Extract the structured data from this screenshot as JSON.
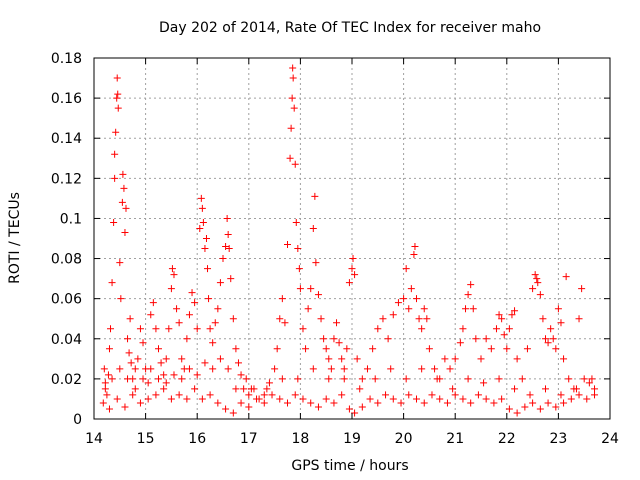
{
  "chart_data": {
    "type": "scatter",
    "title": "Day 202 of 2014, Rate Of TEC Index for receiver maho",
    "xlabel": "GPS time / hours",
    "ylabel": "ROTI / TECUs",
    "xlim": [
      14,
      24
    ],
    "ylim": [
      0,
      0.18
    ],
    "xticks": [
      14,
      15,
      16,
      17,
      18,
      19,
      20,
      21,
      22,
      23,
      24
    ],
    "yticks": [
      0,
      0.02,
      0.04,
      0.06,
      0.08,
      0.1,
      0.12,
      0.14,
      0.16,
      0.18
    ],
    "ytick_labels": [
      "0",
      "0.02",
      "0.04",
      "0.06",
      "0.08",
      "0.1",
      "0.12",
      "0.14",
      "0.16",
      "0.18"
    ],
    "grid": true,
    "marker": "+",
    "color": "#ff0000",
    "points": [
      [
        14.2,
        0.025
      ],
      [
        14.22,
        0.018
      ],
      [
        14.25,
        0.012
      ],
      [
        14.28,
        0.022
      ],
      [
        14.3,
        0.035
      ],
      [
        14.32,
        0.045
      ],
      [
        14.35,
        0.068
      ],
      [
        14.38,
        0.098
      ],
      [
        14.4,
        0.12
      ],
      [
        14.4,
        0.132
      ],
      [
        14.42,
        0.143
      ],
      [
        14.44,
        0.16
      ],
      [
        14.45,
        0.17
      ],
      [
        14.46,
        0.162
      ],
      [
        14.47,
        0.155
      ],
      [
        14.5,
        0.078
      ],
      [
        14.52,
        0.06
      ],
      [
        14.55,
        0.108
      ],
      [
        14.56,
        0.122
      ],
      [
        14.58,
        0.115
      ],
      [
        14.6,
        0.093
      ],
      [
        14.62,
        0.105
      ],
      [
        14.65,
        0.04
      ],
      [
        14.68,
        0.033
      ],
      [
        14.7,
        0.05
      ],
      [
        14.72,
        0.028
      ],
      [
        14.75,
        0.02
      ],
      [
        14.8,
        0.015
      ],
      [
        14.85,
        0.03
      ],
      [
        14.9,
        0.045
      ],
      [
        14.95,
        0.038
      ],
      [
        15.0,
        0.025
      ],
      [
        15.05,
        0.018
      ],
      [
        15.1,
        0.052
      ],
      [
        15.15,
        0.058
      ],
      [
        15.2,
        0.045
      ],
      [
        15.25,
        0.035
      ],
      [
        15.3,
        0.028
      ],
      [
        15.35,
        0.022
      ],
      [
        15.4,
        0.03
      ],
      [
        15.45,
        0.045
      ],
      [
        15.5,
        0.065
      ],
      [
        15.52,
        0.075
      ],
      [
        15.55,
        0.072
      ],
      [
        15.6,
        0.055
      ],
      [
        15.65,
        0.048
      ],
      [
        15.7,
        0.03
      ],
      [
        15.75,
        0.025
      ],
      [
        15.8,
        0.04
      ],
      [
        15.85,
        0.052
      ],
      [
        15.9,
        0.063
      ],
      [
        15.95,
        0.058
      ],
      [
        16.0,
        0.045
      ],
      [
        16.05,
        0.095
      ],
      [
        16.08,
        0.11
      ],
      [
        16.1,
        0.105
      ],
      [
        16.12,
        0.098
      ],
      [
        16.15,
        0.085
      ],
      [
        16.18,
        0.09
      ],
      [
        16.2,
        0.075
      ],
      [
        16.22,
        0.06
      ],
      [
        16.25,
        0.045
      ],
      [
        16.3,
        0.038
      ],
      [
        16.35,
        0.048
      ],
      [
        16.4,
        0.055
      ],
      [
        16.45,
        0.068
      ],
      [
        16.5,
        0.08
      ],
      [
        16.55,
        0.086
      ],
      [
        16.58,
        0.1
      ],
      [
        16.6,
        0.092
      ],
      [
        16.62,
        0.085
      ],
      [
        16.65,
        0.07
      ],
      [
        16.7,
        0.05
      ],
      [
        16.75,
        0.035
      ],
      [
        16.8,
        0.028
      ],
      [
        16.85,
        0.022
      ],
      [
        16.9,
        0.015
      ],
      [
        16.95,
        0.02
      ],
      [
        17.0,
        0.012
      ],
      [
        17.1,
        0.015
      ],
      [
        17.2,
        0.01
      ],
      [
        17.3,
        0.012
      ],
      [
        17.4,
        0.018
      ],
      [
        17.5,
        0.025
      ],
      [
        17.55,
        0.035
      ],
      [
        17.6,
        0.05
      ],
      [
        17.65,
        0.06
      ],
      [
        17.7,
        0.048
      ],
      [
        17.75,
        0.087
      ],
      [
        17.8,
        0.13
      ],
      [
        17.82,
        0.145
      ],
      [
        17.84,
        0.16
      ],
      [
        17.85,
        0.175
      ],
      [
        17.86,
        0.17
      ],
      [
        17.88,
        0.155
      ],
      [
        17.9,
        0.127
      ],
      [
        17.92,
        0.098
      ],
      [
        17.95,
        0.085
      ],
      [
        17.98,
        0.075
      ],
      [
        18.0,
        0.065
      ],
      [
        18.05,
        0.045
      ],
      [
        18.1,
        0.035
      ],
      [
        18.15,
        0.055
      ],
      [
        18.2,
        0.065
      ],
      [
        18.25,
        0.095
      ],
      [
        18.28,
        0.111
      ],
      [
        18.3,
        0.078
      ],
      [
        18.35,
        0.062
      ],
      [
        18.4,
        0.05
      ],
      [
        18.45,
        0.04
      ],
      [
        18.5,
        0.035
      ],
      [
        18.55,
        0.03
      ],
      [
        18.6,
        0.025
      ],
      [
        18.65,
        0.04
      ],
      [
        18.7,
        0.048
      ],
      [
        18.75,
        0.038
      ],
      [
        18.8,
        0.03
      ],
      [
        18.85,
        0.025
      ],
      [
        18.9,
        0.035
      ],
      [
        18.95,
        0.068
      ],
      [
        19.0,
        0.075
      ],
      [
        19.02,
        0.08
      ],
      [
        19.05,
        0.072
      ],
      [
        19.1,
        0.03
      ],
      [
        19.2,
        0.02
      ],
      [
        19.3,
        0.025
      ],
      [
        19.4,
        0.035
      ],
      [
        19.5,
        0.045
      ],
      [
        19.6,
        0.05
      ],
      [
        19.7,
        0.04
      ],
      [
        19.8,
        0.052
      ],
      [
        19.9,
        0.058
      ],
      [
        20.0,
        0.06
      ],
      [
        20.05,
        0.075
      ],
      [
        20.1,
        0.055
      ],
      [
        20.15,
        0.065
      ],
      [
        20.2,
        0.082
      ],
      [
        20.22,
        0.086
      ],
      [
        20.25,
        0.06
      ],
      [
        20.3,
        0.05
      ],
      [
        20.35,
        0.045
      ],
      [
        20.4,
        0.055
      ],
      [
        20.45,
        0.05
      ],
      [
        20.5,
        0.035
      ],
      [
        20.6,
        0.025
      ],
      [
        20.7,
        0.02
      ],
      [
        20.8,
        0.03
      ],
      [
        20.9,
        0.025
      ],
      [
        21.0,
        0.03
      ],
      [
        21.1,
        0.038
      ],
      [
        21.15,
        0.045
      ],
      [
        21.2,
        0.055
      ],
      [
        21.25,
        0.062
      ],
      [
        21.3,
        0.067
      ],
      [
        21.35,
        0.055
      ],
      [
        21.4,
        0.04
      ],
      [
        21.5,
        0.03
      ],
      [
        21.6,
        0.04
      ],
      [
        21.7,
        0.035
      ],
      [
        21.8,
        0.045
      ],
      [
        21.85,
        0.052
      ],
      [
        21.9,
        0.05
      ],
      [
        21.95,
        0.042
      ],
      [
        22.0,
        0.035
      ],
      [
        22.05,
        0.045
      ],
      [
        22.1,
        0.052
      ],
      [
        22.15,
        0.054
      ],
      [
        22.2,
        0.03
      ],
      [
        22.3,
        0.02
      ],
      [
        22.4,
        0.035
      ],
      [
        22.5,
        0.065
      ],
      [
        22.55,
        0.072
      ],
      [
        22.58,
        0.07
      ],
      [
        22.6,
        0.068
      ],
      [
        22.65,
        0.062
      ],
      [
        22.7,
        0.05
      ],
      [
        22.75,
        0.04
      ],
      [
        22.8,
        0.038
      ],
      [
        22.85,
        0.045
      ],
      [
        22.9,
        0.04
      ],
      [
        22.95,
        0.035
      ],
      [
        23.0,
        0.055
      ],
      [
        23.05,
        0.048
      ],
      [
        23.1,
        0.03
      ],
      [
        23.15,
        0.071
      ],
      [
        23.2,
        0.02
      ],
      [
        23.3,
        0.015
      ],
      [
        23.4,
        0.05
      ],
      [
        23.45,
        0.065
      ],
      [
        23.5,
        0.02
      ],
      [
        23.6,
        0.018
      ],
      [
        23.7,
        0.015
      ],
      [
        14.18,
        0.008
      ],
      [
        14.3,
        0.005
      ],
      [
        14.45,
        0.01
      ],
      [
        14.6,
        0.006
      ],
      [
        14.75,
        0.012
      ],
      [
        14.9,
        0.008
      ],
      [
        15.05,
        0.01
      ],
      [
        15.2,
        0.012
      ],
      [
        15.35,
        0.015
      ],
      [
        15.5,
        0.01
      ],
      [
        15.65,
        0.012
      ],
      [
        15.8,
        0.01
      ],
      [
        15.95,
        0.015
      ],
      [
        16.1,
        0.01
      ],
      [
        16.25,
        0.012
      ],
      [
        16.4,
        0.008
      ],
      [
        16.55,
        0.005
      ],
      [
        16.7,
        0.003
      ],
      [
        16.85,
        0.008
      ],
      [
        17.0,
        0.006
      ],
      [
        17.15,
        0.01
      ],
      [
        17.3,
        0.008
      ],
      [
        17.45,
        0.012
      ],
      [
        17.6,
        0.01
      ],
      [
        17.75,
        0.008
      ],
      [
        17.9,
        0.012
      ],
      [
        18.05,
        0.01
      ],
      [
        18.2,
        0.008
      ],
      [
        18.35,
        0.006
      ],
      [
        18.5,
        0.01
      ],
      [
        18.65,
        0.008
      ],
      [
        18.8,
        0.012
      ],
      [
        18.95,
        0.005
      ],
      [
        19.05,
        0.003
      ],
      [
        19.2,
        0.006
      ],
      [
        19.35,
        0.01
      ],
      [
        19.5,
        0.008
      ],
      [
        19.65,
        0.012
      ],
      [
        19.8,
        0.01
      ],
      [
        19.95,
        0.008
      ],
      [
        20.1,
        0.012
      ],
      [
        20.25,
        0.01
      ],
      [
        20.4,
        0.008
      ],
      [
        20.55,
        0.012
      ],
      [
        20.7,
        0.01
      ],
      [
        20.85,
        0.008
      ],
      [
        21.0,
        0.012
      ],
      [
        21.15,
        0.01
      ],
      [
        21.3,
        0.008
      ],
      [
        21.45,
        0.012
      ],
      [
        21.6,
        0.01
      ],
      [
        21.75,
        0.008
      ],
      [
        21.9,
        0.01
      ],
      [
        22.05,
        0.005
      ],
      [
        22.2,
        0.003
      ],
      [
        22.35,
        0.006
      ],
      [
        22.5,
        0.008
      ],
      [
        22.65,
        0.005
      ],
      [
        22.8,
        0.008
      ],
      [
        22.95,
        0.006
      ],
      [
        23.1,
        0.008
      ],
      [
        23.25,
        0.01
      ],
      [
        23.4,
        0.012
      ],
      [
        23.55,
        0.01
      ],
      [
        23.7,
        0.012
      ],
      [
        14.22,
        0.015
      ],
      [
        14.35,
        0.02
      ],
      [
        14.5,
        0.025
      ],
      [
        14.65,
        0.02
      ],
      [
        14.8,
        0.025
      ],
      [
        14.95,
        0.02
      ],
      [
        15.1,
        0.025
      ],
      [
        15.25,
        0.02
      ],
      [
        15.4,
        0.018
      ],
      [
        15.55,
        0.022
      ],
      [
        15.7,
        0.02
      ],
      [
        15.85,
        0.025
      ],
      [
        16.0,
        0.022
      ],
      [
        16.15,
        0.028
      ],
      [
        16.3,
        0.025
      ],
      [
        16.45,
        0.03
      ],
      [
        16.6,
        0.025
      ],
      [
        16.75,
        0.015
      ],
      [
        17.05,
        0.015
      ],
      [
        17.35,
        0.015
      ],
      [
        17.65,
        0.02
      ],
      [
        17.95,
        0.02
      ],
      [
        18.25,
        0.025
      ],
      [
        18.55,
        0.02
      ],
      [
        18.85,
        0.02
      ],
      [
        19.15,
        0.015
      ],
      [
        19.45,
        0.02
      ],
      [
        19.75,
        0.025
      ],
      [
        20.05,
        0.02
      ],
      [
        20.35,
        0.025
      ],
      [
        20.65,
        0.02
      ],
      [
        20.95,
        0.015
      ],
      [
        21.25,
        0.02
      ],
      [
        21.55,
        0.018
      ],
      [
        21.85,
        0.02
      ],
      [
        22.15,
        0.015
      ],
      [
        22.45,
        0.012
      ],
      [
        22.75,
        0.015
      ],
      [
        23.05,
        0.012
      ],
      [
        23.35,
        0.015
      ],
      [
        23.65,
        0.02
      ]
    ]
  }
}
